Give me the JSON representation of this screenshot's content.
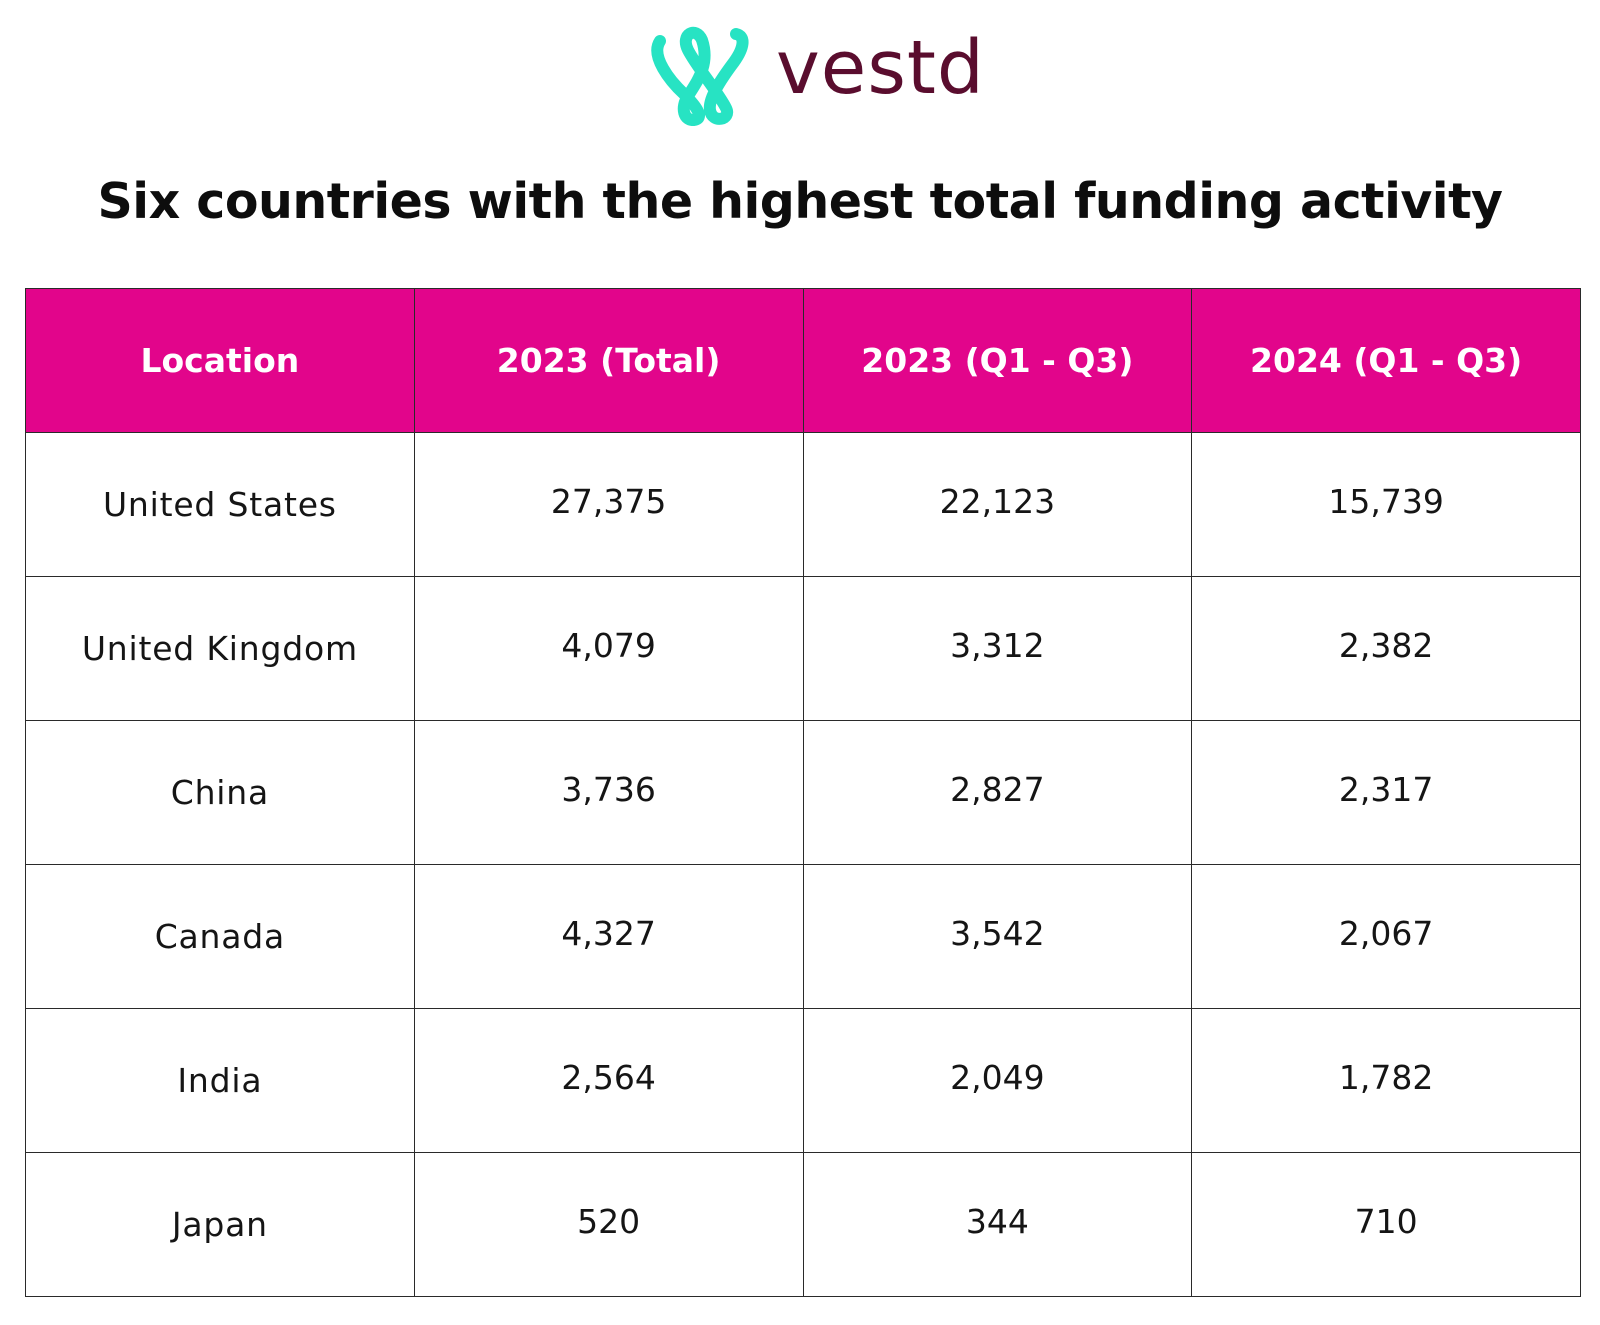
{
  "brand": {
    "name": "vestd",
    "icon": "vestd-heart-logo-icon",
    "icon_color": "#27e3c3",
    "text_color": "#5a0d2e"
  },
  "header_color": "#e2058b",
  "chart_data": {
    "type": "table",
    "title": "Six countries with the highest total funding activity",
    "columns": [
      "Location",
      "2023 (Total)",
      "2023 (Q1 - Q3)",
      "2024 (Q1 - Q3)"
    ],
    "rows": [
      [
        "United States",
        "27,375",
        "22,123",
        "15,739"
      ],
      [
        "United Kingdom",
        "4,079",
        "3,312",
        "2,382"
      ],
      [
        "China",
        "3,736",
        "2,827",
        "2,317"
      ],
      [
        "Canada",
        "4,327",
        "3,542",
        "2,067"
      ],
      [
        "India",
        "2,564",
        "2,049",
        "1,782"
      ],
      [
        "Japan",
        "520",
        "344",
        "710"
      ]
    ]
  }
}
